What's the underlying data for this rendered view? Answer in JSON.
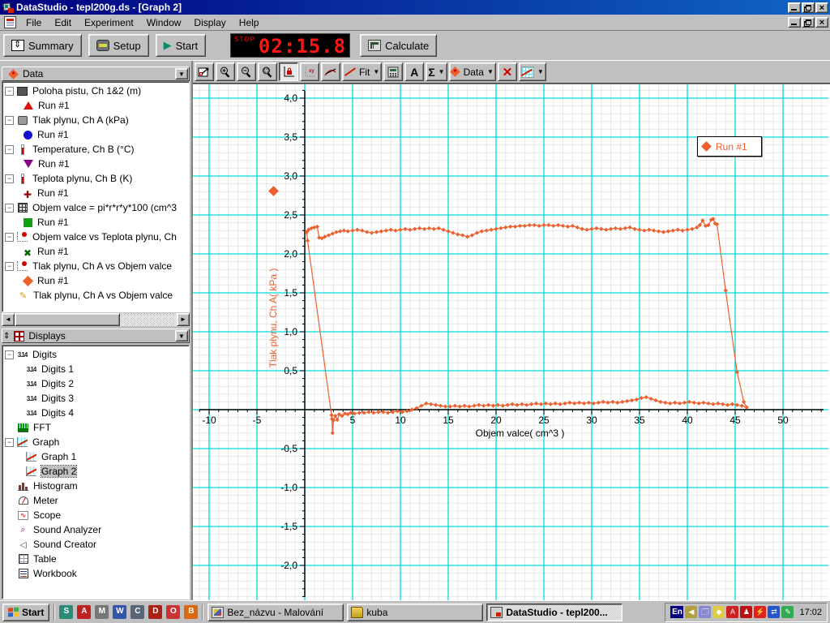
{
  "window": {
    "title": "DataStudio - tepl200g.ds - [Graph 2]"
  },
  "menu": {
    "items": [
      "File",
      "Edit",
      "Experiment",
      "Window",
      "Display",
      "Help"
    ]
  },
  "main_toolbar": {
    "summary_label": "Summary",
    "setup_label": "Setup",
    "start_label": "Start",
    "start_glyph": "▶",
    "calculate_label": "Calculate",
    "timer": {
      "mode_label": "STOP",
      "value": "02:15.8"
    }
  },
  "graph_toolbar": {
    "fit_label": "Fit",
    "data_label": "Data",
    "text_label": "A",
    "sigma_label": "Σ",
    "remove_label": "✕",
    "dropdown_glyph": "▼",
    "buttons": [
      {
        "name": "scale-to-fit-button",
        "pressed": false
      },
      {
        "name": "zoom-in-button",
        "pressed": false
      },
      {
        "name": "zoom-out-button",
        "pressed": false
      },
      {
        "name": "zoom-select-button",
        "pressed": false
      },
      {
        "name": "smart-tool-button",
        "pressed": true
      },
      {
        "name": "slope-tool-button",
        "pressed": false
      },
      {
        "name": "tangent-tool-button",
        "pressed": false
      },
      {
        "name": "fit-menu-button",
        "pressed": false
      },
      {
        "name": "calculator-button",
        "pressed": false
      },
      {
        "name": "text-annotation-button",
        "pressed": false
      },
      {
        "name": "statistics-menu-button",
        "pressed": false
      },
      {
        "name": "data-menu-button",
        "pressed": false
      },
      {
        "name": "remove-button",
        "pressed": false
      },
      {
        "name": "graph-settings-button",
        "pressed": false
      }
    ]
  },
  "data_panel": {
    "header": "Data",
    "items": [
      {
        "label": "Poloha pistu, Ch 1&2 (m)",
        "icon": "motion-sensor-icon",
        "runs": [
          {
            "label": "Run #1",
            "marker": "triangle-up",
            "color": "#dd1111"
          }
        ]
      },
      {
        "label": "Tlak plynu, Ch A (kPa)",
        "icon": "pressure-sensor-icon",
        "runs": [
          {
            "label": "Run #1",
            "marker": "circle",
            "color": "#1111cc"
          }
        ]
      },
      {
        "label": "Temperature, Ch B (°C)",
        "icon": "thermometer-icon",
        "runs": [
          {
            "label": "Run #1",
            "marker": "triangle-down",
            "color": "#880088"
          }
        ]
      },
      {
        "label": "Teplota plynu, Ch B (K)",
        "icon": "thermometer-icon",
        "runs": [
          {
            "label": "Run #1",
            "marker": "plus",
            "color": "#990000"
          }
        ]
      },
      {
        "label": "Objem valce = pi*r*r*y*100 (cm^3",
        "icon": "calculator-icon",
        "runs": [
          {
            "label": "Run #1",
            "marker": "square",
            "color": "#11a011"
          }
        ]
      },
      {
        "label": "Objem valce vs Teplota plynu, Ch",
        "icon": "xy-display-icon",
        "runs": [
          {
            "label": "Run #1",
            "marker": "x",
            "color": "#006600"
          }
        ]
      },
      {
        "label": "Tlak plynu, Ch A vs Objem valce",
        "icon": "xy-display-icon",
        "runs": [
          {
            "label": "Run #1",
            "marker": "diamond",
            "color": "#ee5f2e"
          }
        ]
      },
      {
        "label": "Tlak plynu, Ch A vs Objem valce",
        "icon": "pencil-icon",
        "runs": []
      }
    ]
  },
  "displays_panel": {
    "header": "Displays",
    "items": [
      {
        "label": "Digits",
        "icon": "digits-icon",
        "children": [
          {
            "label": "Digits 1"
          },
          {
            "label": "Digits 2"
          },
          {
            "label": "Digits 3"
          },
          {
            "label": "Digits 4"
          }
        ]
      },
      {
        "label": "FFT",
        "icon": "fft-icon",
        "children": []
      },
      {
        "label": "Graph",
        "icon": "graph-icon",
        "children": [
          {
            "label": "Graph 1"
          },
          {
            "label": "Graph 2",
            "selected": true
          }
        ]
      },
      {
        "label": "Histogram",
        "icon": "histogram-icon",
        "children": []
      },
      {
        "label": "Meter",
        "icon": "meter-icon",
        "children": []
      },
      {
        "label": "Scope",
        "icon": "scope-icon",
        "children": []
      },
      {
        "label": "Sound Analyzer",
        "icon": "sound-analyzer-icon",
        "children": []
      },
      {
        "label": "Sound Creator",
        "icon": "sound-creator-icon",
        "children": []
      },
      {
        "label": "Table",
        "icon": "table-icon",
        "children": []
      },
      {
        "label": "Workbook",
        "icon": "workbook-icon",
        "children": []
      }
    ]
  },
  "chart_data": {
    "type": "scatter",
    "title": "",
    "xlabel": "Objem valce( cm^3 )",
    "ylabel": "Tlak plynu, Ch A( kPa )",
    "xlim": [
      -11.7,
      54.8
    ],
    "ylim": [
      -2.46,
      4.18
    ],
    "x_ticks": [
      {
        "label": "-10",
        "value": -10
      },
      {
        "label": "-5",
        "value": -5
      },
      {
        "label": "5",
        "value": 5
      },
      {
        "label": "10",
        "value": 10
      },
      {
        "label": "15",
        "value": 15
      },
      {
        "label": "20",
        "value": 20
      },
      {
        "label": "25",
        "value": 25
      },
      {
        "label": "30",
        "value": 30
      },
      {
        "label": "35",
        "value": 35
      },
      {
        "label": "40",
        "value": 40
      },
      {
        "label": "45",
        "value": 45
      },
      {
        "label": "50",
        "value": 50
      }
    ],
    "y_ticks": [
      {
        "label": "4,0",
        "value": 4.0
      },
      {
        "label": "3,5",
        "value": 3.5
      },
      {
        "label": "3,0",
        "value": 3.0
      },
      {
        "label": "2,5",
        "value": 2.5
      },
      {
        "label": "2,0",
        "value": 2.0
      },
      {
        "label": "1,5",
        "value": 1.5
      },
      {
        "label": "1,0",
        "value": 1.0
      },
      {
        "label": "0,5",
        "value": 0.5
      },
      {
        "label": "-0,5",
        "value": -0.5
      },
      {
        "label": "-1,0",
        "value": -1.0
      },
      {
        "label": "-1,5",
        "value": -1.5
      },
      {
        "label": "-2,0",
        "value": -2.0
      }
    ],
    "grid": {
      "minor_step_x": 1,
      "minor_step_y": 0.1,
      "major_step_x": 5,
      "major_step_y": 0.5,
      "minor_color": "#e7e7e7",
      "major_color": "#00dcdc"
    },
    "legend": {
      "label": "Run #1",
      "position": "upper-right"
    },
    "series": [
      {
        "name": "Run #1",
        "color": "#ee5f2e",
        "marker": "diamond",
        "points": [
          [
            0.2,
            2.28
          ],
          [
            0.4,
            2.31
          ],
          [
            0.7,
            2.33
          ],
          [
            1.0,
            2.34
          ],
          [
            1.3,
            2.35
          ],
          [
            1.5,
            2.21
          ],
          [
            1.8,
            2.2
          ],
          [
            2.1,
            2.22
          ],
          [
            2.5,
            2.24
          ],
          [
            2.9,
            2.26
          ],
          [
            3.3,
            2.28
          ],
          [
            3.7,
            2.29
          ],
          [
            4.1,
            2.3
          ],
          [
            4.5,
            2.29
          ],
          [
            5.0,
            2.3
          ],
          [
            5.5,
            2.31
          ],
          [
            6.0,
            2.3
          ],
          [
            6.5,
            2.28
          ],
          [
            7.0,
            2.27
          ],
          [
            7.5,
            2.28
          ],
          [
            8.0,
            2.29
          ],
          [
            8.5,
            2.3
          ],
          [
            9.0,
            2.31
          ],
          [
            9.5,
            2.3
          ],
          [
            10.0,
            2.31
          ],
          [
            10.5,
            2.32
          ],
          [
            11.0,
            2.31
          ],
          [
            11.5,
            2.32
          ],
          [
            12.0,
            2.33
          ],
          [
            12.5,
            2.32
          ],
          [
            13.0,
            2.33
          ],
          [
            13.5,
            2.32
          ],
          [
            14.0,
            2.33
          ],
          [
            14.5,
            2.31
          ],
          [
            15.0,
            2.29
          ],
          [
            15.5,
            2.27
          ],
          [
            16.0,
            2.25
          ],
          [
            16.5,
            2.24
          ],
          [
            17.0,
            2.22
          ],
          [
            17.5,
            2.24
          ],
          [
            18.0,
            2.27
          ],
          [
            18.5,
            2.29
          ],
          [
            19.0,
            2.3
          ],
          [
            19.5,
            2.31
          ],
          [
            20.0,
            2.32
          ],
          [
            20.5,
            2.33
          ],
          [
            21.0,
            2.34
          ],
          [
            21.5,
            2.35
          ],
          [
            22.0,
            2.35
          ],
          [
            22.5,
            2.36
          ],
          [
            23.0,
            2.36
          ],
          [
            23.5,
            2.37
          ],
          [
            24.0,
            2.37
          ],
          [
            24.5,
            2.36
          ],
          [
            25.0,
            2.37
          ],
          [
            25.5,
            2.37
          ],
          [
            26.0,
            2.36
          ],
          [
            26.5,
            2.37
          ],
          [
            27.0,
            2.36
          ],
          [
            27.5,
            2.35
          ],
          [
            28.0,
            2.36
          ],
          [
            28.5,
            2.34
          ],
          [
            29.0,
            2.32
          ],
          [
            29.5,
            2.31
          ],
          [
            30.0,
            2.32
          ],
          [
            30.5,
            2.33
          ],
          [
            31.0,
            2.32
          ],
          [
            31.5,
            2.31
          ],
          [
            32.0,
            2.32
          ],
          [
            32.5,
            2.33
          ],
          [
            33.0,
            2.32
          ],
          [
            33.5,
            2.33
          ],
          [
            34.0,
            2.34
          ],
          [
            34.5,
            2.32
          ],
          [
            35.0,
            2.31
          ],
          [
            35.5,
            2.3
          ],
          [
            36.0,
            2.31
          ],
          [
            36.5,
            2.3
          ],
          [
            37.0,
            2.29
          ],
          [
            37.5,
            2.28
          ],
          [
            38.0,
            2.29
          ],
          [
            38.5,
            2.3
          ],
          [
            39.0,
            2.31
          ],
          [
            39.5,
            2.3
          ],
          [
            40.0,
            2.31
          ],
          [
            40.5,
            2.32
          ],
          [
            41.0,
            2.34
          ],
          [
            41.3,
            2.37
          ],
          [
            41.6,
            2.43
          ],
          [
            41.9,
            2.36
          ],
          [
            42.2,
            2.37
          ],
          [
            42.5,
            2.44
          ],
          [
            42.7,
            2.45
          ],
          [
            42.9,
            2.39
          ],
          [
            43.1,
            2.38
          ],
          [
            44.0,
            1.53
          ],
          [
            45.2,
            0.48
          ],
          [
            45.9,
            0.1
          ],
          [
            46.2,
            0.03
          ],
          [
            45.7,
            0.05
          ],
          [
            45.2,
            0.06
          ],
          [
            44.7,
            0.07
          ],
          [
            44.2,
            0.06
          ],
          [
            43.7,
            0.07
          ],
          [
            43.2,
            0.08
          ],
          [
            42.7,
            0.07
          ],
          [
            42.2,
            0.08
          ],
          [
            41.7,
            0.09
          ],
          [
            41.2,
            0.08
          ],
          [
            40.7,
            0.09
          ],
          [
            40.2,
            0.1
          ],
          [
            39.7,
            0.09
          ],
          [
            39.2,
            0.08
          ],
          [
            38.7,
            0.09
          ],
          [
            38.2,
            0.08
          ],
          [
            37.7,
            0.09
          ],
          [
            37.2,
            0.1
          ],
          [
            36.7,
            0.12
          ],
          [
            36.2,
            0.14
          ],
          [
            35.7,
            0.16
          ],
          [
            35.2,
            0.15
          ],
          [
            34.7,
            0.13
          ],
          [
            34.2,
            0.12
          ],
          [
            33.7,
            0.11
          ],
          [
            33.2,
            0.1
          ],
          [
            32.7,
            0.09
          ],
          [
            32.2,
            0.1
          ],
          [
            31.7,
            0.09
          ],
          [
            31.2,
            0.1
          ],
          [
            30.7,
            0.09
          ],
          [
            30.2,
            0.08
          ],
          [
            29.7,
            0.09
          ],
          [
            29.2,
            0.08
          ],
          [
            28.7,
            0.09
          ],
          [
            28.2,
            0.08
          ],
          [
            27.7,
            0.09
          ],
          [
            27.2,
            0.08
          ],
          [
            26.7,
            0.07
          ],
          [
            26.2,
            0.08
          ],
          [
            25.7,
            0.07
          ],
          [
            25.2,
            0.08
          ],
          [
            24.7,
            0.07
          ],
          [
            24.2,
            0.08
          ],
          [
            23.7,
            0.07
          ],
          [
            23.2,
            0.06
          ],
          [
            22.7,
            0.07
          ],
          [
            22.2,
            0.06
          ],
          [
            21.7,
            0.07
          ],
          [
            21.2,
            0.06
          ],
          [
            20.7,
            0.05
          ],
          [
            20.2,
            0.06
          ],
          [
            19.7,
            0.05
          ],
          [
            19.2,
            0.06
          ],
          [
            18.7,
            0.05
          ],
          [
            18.2,
            0.06
          ],
          [
            17.7,
            0.05
          ],
          [
            17.2,
            0.04
          ],
          [
            16.7,
            0.05
          ],
          [
            16.2,
            0.04
          ],
          [
            15.7,
            0.05
          ],
          [
            15.2,
            0.04
          ],
          [
            14.7,
            0.04
          ],
          [
            14.2,
            0.05
          ],
          [
            13.7,
            0.06
          ],
          [
            13.2,
            0.07
          ],
          [
            12.7,
            0.08
          ],
          [
            12.2,
            0.05
          ],
          [
            11.7,
            0.02
          ],
          [
            11.2,
            0.0
          ],
          [
            10.7,
            -0.02
          ],
          [
            10.2,
            -0.03
          ],
          [
            9.7,
            -0.02
          ],
          [
            9.2,
            -0.03
          ],
          [
            8.7,
            -0.04
          ],
          [
            8.2,
            -0.03
          ],
          [
            7.7,
            -0.03
          ],
          [
            7.2,
            -0.04
          ],
          [
            6.7,
            -0.03
          ],
          [
            6.2,
            -0.04
          ],
          [
            5.7,
            -0.04
          ],
          [
            5.2,
            -0.05
          ],
          [
            4.8,
            -0.04
          ],
          [
            4.5,
            -0.06
          ],
          [
            4.2,
            -0.05
          ],
          [
            3.9,
            -0.08
          ],
          [
            3.6,
            -0.06
          ],
          [
            3.4,
            -0.13
          ],
          [
            3.2,
            -0.08
          ],
          [
            3.0,
            -0.14
          ],
          [
            2.9,
            -0.3
          ],
          [
            2.85,
            -0.12
          ],
          [
            2.8,
            -0.07
          ],
          [
            0.3,
            2.17
          ],
          [
            0.2,
            2.28
          ]
        ]
      }
    ]
  },
  "taskbar": {
    "start_label": "Start",
    "quicklaunch": [
      "show-desktop-icon",
      "acrobat-icon",
      "media-player-icon",
      "writer-icon",
      "calculator-icon",
      "dragon-icon",
      "opera-icon",
      "burner-icon"
    ],
    "tasks": [
      {
        "label": "Bez_názvu - Malování",
        "icon": "paint-icon",
        "active": false
      },
      {
        "label": "kuba",
        "icon": "folder-icon",
        "active": false
      },
      {
        "label": "DataStudio - tepl200...",
        "icon": "datastudio-icon",
        "active": true
      }
    ],
    "tray": {
      "lang": "En",
      "icons": [
        "speaker-icon",
        "scheduler-icon",
        "display-settings-icon",
        "ati-icon",
        "agent-icon",
        "power-icon",
        "sync-icon",
        "pen-icon"
      ],
      "clock": "17:02"
    }
  }
}
